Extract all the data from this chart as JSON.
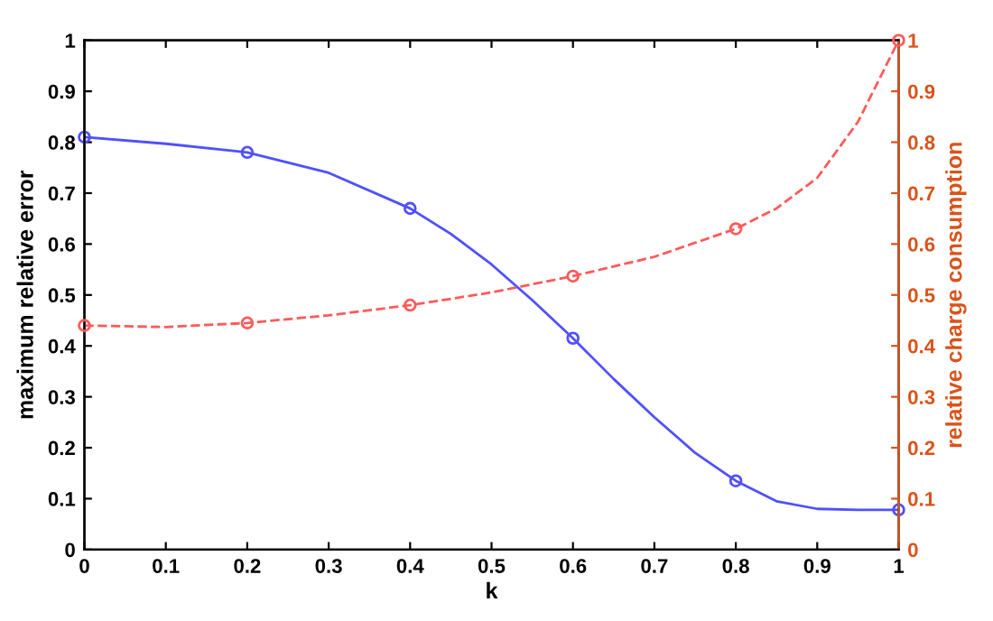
{
  "chart_data": {
    "type": "line",
    "xlabel": "k",
    "ylabel": "maximum relative error",
    "y2label": "relative charge consumption",
    "xlim": [
      0,
      1
    ],
    "xticks": [
      0,
      0.1,
      0.2,
      0.3,
      0.4,
      0.5,
      0.6,
      0.7,
      0.8,
      0.9,
      1
    ],
    "ylim": [
      0,
      1
    ],
    "yticks": [
      0,
      0.1,
      0.2,
      0.3,
      0.4,
      0.5,
      0.6,
      0.7,
      0.8,
      0.9,
      1
    ],
    "y2lim": [
      0,
      1
    ],
    "y2ticks": [
      0,
      0.1,
      0.2,
      0.3,
      0.4,
      0.5,
      0.6,
      0.7,
      0.8,
      0.9,
      1
    ],
    "grid": false,
    "legend": false,
    "series": [
      {
        "color": "#5050ff",
        "line_style": "solid",
        "marker": "none",
        "x": [
          0,
          0.1,
          0.2,
          0.3,
          0.4,
          0.45,
          0.5,
          0.55,
          0.6,
          0.65,
          0.7,
          0.75,
          0.8,
          0.85,
          0.9,
          0.95,
          1
        ],
        "values": [
          0.81,
          0.797,
          0.78,
          0.74,
          0.67,
          0.62,
          0.56,
          0.49,
          0.415,
          0.335,
          0.26,
          0.19,
          0.135,
          0.095,
          0.08,
          0.078,
          0.078
        ]
      },
      {
        "type": "scatter",
        "color": "#5050ff",
        "marker": "circle",
        "x": [
          0,
          0.2,
          0.4,
          0.6,
          0.8,
          1
        ],
        "values": [
          0.81,
          0.78,
          0.67,
          0.415,
          0.135,
          0.078
        ]
      },
      {
        "axis": "y2",
        "color": "#ff5a5a",
        "line_style": "dashed",
        "marker": "none",
        "x": [
          0,
          0.1,
          0.2,
          0.3,
          0.4,
          0.5,
          0.6,
          0.7,
          0.8,
          0.85,
          0.9,
          0.95,
          1
        ],
        "values": [
          0.44,
          0.437,
          0.445,
          0.46,
          0.48,
          0.505,
          0.537,
          0.575,
          0.63,
          0.67,
          0.73,
          0.84,
          1.0
        ]
      },
      {
        "type": "scatter",
        "axis": "y2",
        "color": "#ff5a5a",
        "marker": "circle",
        "x": [
          0,
          0.2,
          0.4,
          0.6,
          0.8,
          1
        ],
        "values": [
          0.44,
          0.445,
          0.48,
          0.537,
          0.63,
          1.0
        ]
      }
    ]
  }
}
